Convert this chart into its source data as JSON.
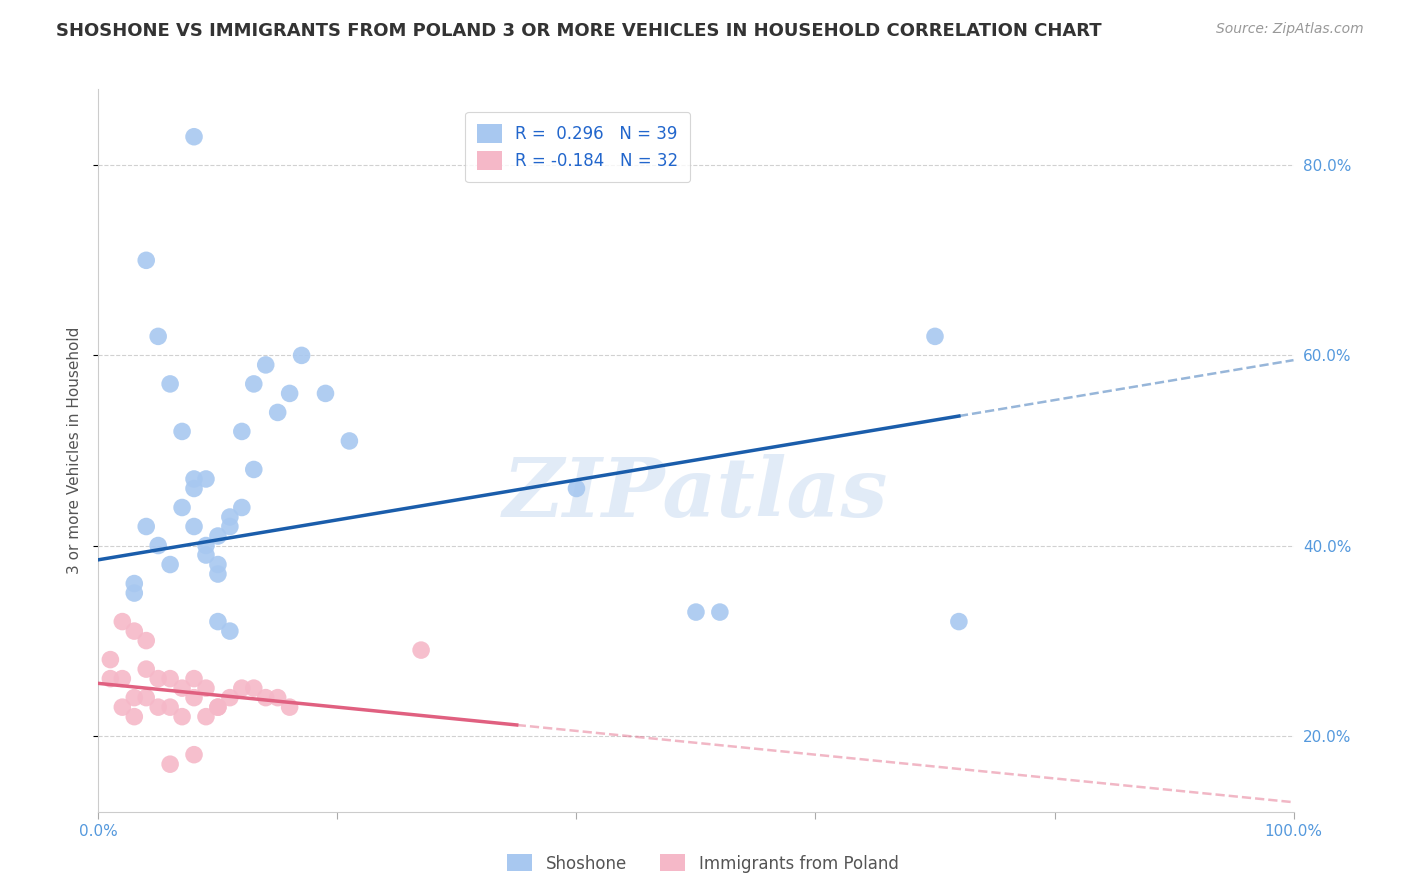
{
  "title": "SHOSHONE VS IMMIGRANTS FROM POLAND 3 OR MORE VEHICLES IN HOUSEHOLD CORRELATION CHART",
  "source": "Source: ZipAtlas.com",
  "ylabel": "3 or more Vehicles in Household",
  "legend_label1": "R =  0.296   N = 39",
  "legend_label2": "R = -0.184   N = 32",
  "legend_name1": "Shoshone",
  "legend_name2": "Immigrants from Poland",
  "color_blue": "#A8C8F0",
  "color_blue_line": "#1A5DAB",
  "color_pink": "#F5B8C8",
  "color_pink_line": "#E06080",
  "blue_scatter_x": [
    0.03,
    0.04,
    0.05,
    0.06,
    0.07,
    0.08,
    0.08,
    0.09,
    0.09,
    0.1,
    0.1,
    0.1,
    0.11,
    0.11,
    0.12,
    0.12,
    0.13,
    0.13,
    0.14,
    0.15,
    0.16,
    0.17,
    0.19,
    0.21,
    0.04,
    0.05,
    0.06,
    0.07,
    0.08,
    0.09,
    0.1,
    0.11,
    0.4,
    0.7,
    0.72,
    0.5,
    0.52,
    0.03,
    0.08
  ],
  "blue_scatter_y": [
    0.36,
    0.42,
    0.4,
    0.38,
    0.44,
    0.46,
    0.42,
    0.4,
    0.39,
    0.38,
    0.37,
    0.41,
    0.43,
    0.42,
    0.44,
    0.52,
    0.57,
    0.48,
    0.59,
    0.54,
    0.56,
    0.6,
    0.56,
    0.51,
    0.7,
    0.62,
    0.57,
    0.52,
    0.47,
    0.47,
    0.32,
    0.31,
    0.46,
    0.62,
    0.32,
    0.33,
    0.33,
    0.35,
    0.83
  ],
  "pink_scatter_x": [
    0.01,
    0.02,
    0.02,
    0.03,
    0.03,
    0.04,
    0.04,
    0.05,
    0.05,
    0.06,
    0.06,
    0.07,
    0.07,
    0.08,
    0.08,
    0.09,
    0.09,
    0.1,
    0.1,
    0.11,
    0.12,
    0.13,
    0.14,
    0.15,
    0.16,
    0.01,
    0.02,
    0.03,
    0.04,
    0.06,
    0.08,
    0.27
  ],
  "pink_scatter_y": [
    0.26,
    0.26,
    0.23,
    0.24,
    0.22,
    0.27,
    0.24,
    0.26,
    0.23,
    0.23,
    0.26,
    0.25,
    0.22,
    0.26,
    0.24,
    0.25,
    0.22,
    0.23,
    0.23,
    0.24,
    0.25,
    0.25,
    0.24,
    0.24,
    0.23,
    0.28,
    0.32,
    0.31,
    0.3,
    0.17,
    0.18,
    0.29
  ],
  "xlim": [
    0.0,
    1.0
  ],
  "ylim": [
    0.12,
    0.88
  ],
  "blue_line_y_start": 0.385,
  "blue_line_y_end": 0.595,
  "blue_line_solid_end": 0.72,
  "pink_line_y_start": 0.255,
  "pink_line_y_end": 0.13,
  "pink_line_solid_end": 0.35,
  "yticks": [
    0.2,
    0.4,
    0.6,
    0.8
  ],
  "xticks": [
    0.0,
    0.2,
    0.4,
    0.6,
    0.8,
    1.0
  ],
  "watermark": "ZIPatlas",
  "background_color": "#FFFFFF",
  "grid_color": "#CCCCCC"
}
